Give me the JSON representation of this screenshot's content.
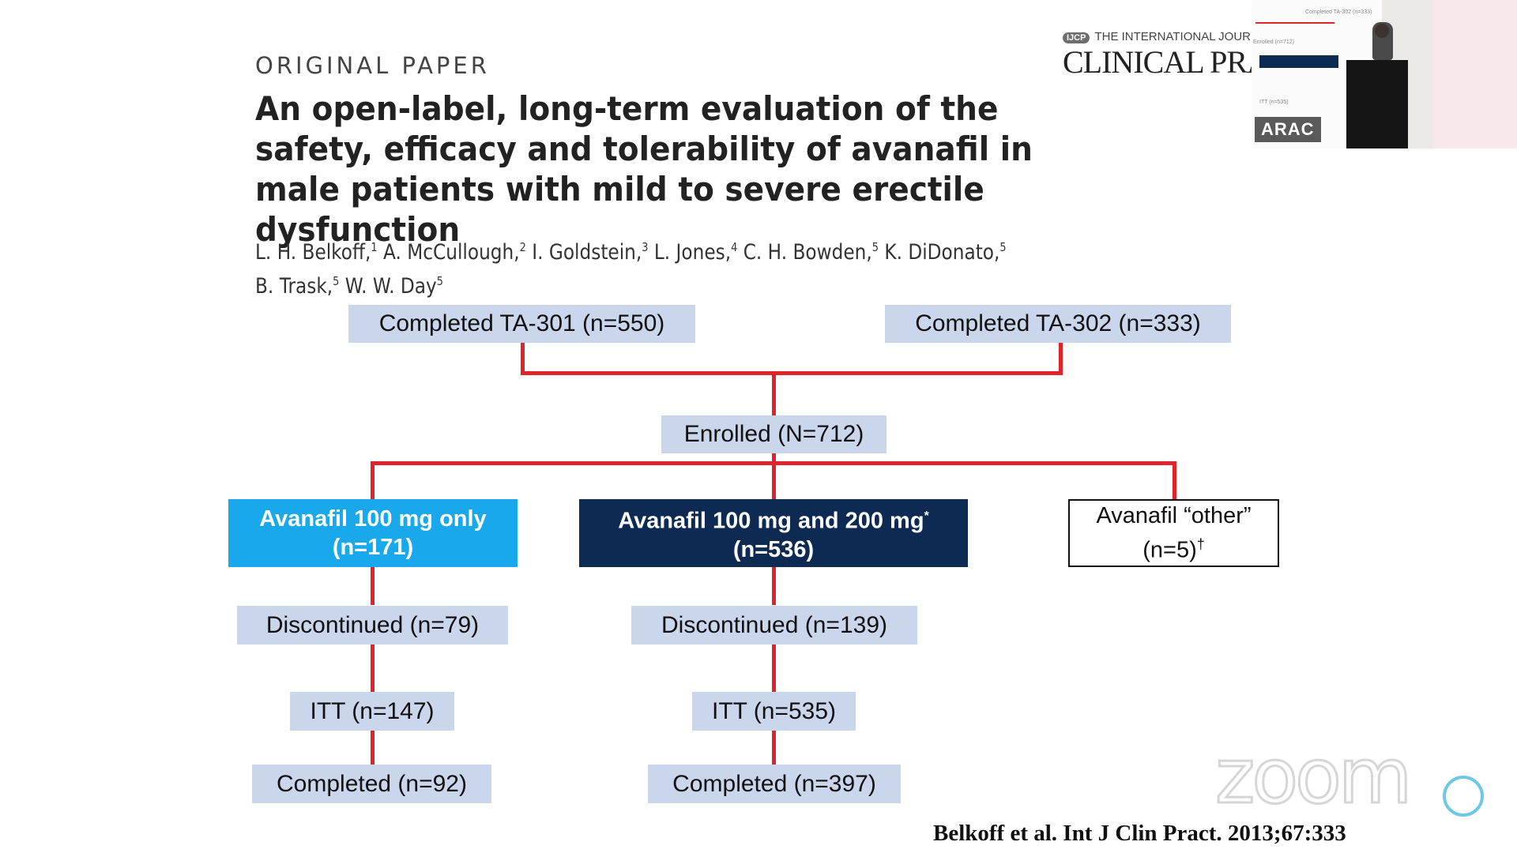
{
  "slide": {
    "header": "ORIGINAL PAPER",
    "title": "An open-label, long-term evaluation of the safety, efficacy and tolerability of avanafil in male patients with mild to severe erectile dysfunction",
    "authors": [
      {
        "name": "L. H. Belkoff,",
        "sup": "1"
      },
      {
        "name": "A. McCullough,",
        "sup": "2"
      },
      {
        "name": "I. Goldstein,",
        "sup": "3"
      },
      {
        "name": "L. Jones,",
        "sup": "4"
      },
      {
        "name": "C. H. Bowden,",
        "sup": "5"
      },
      {
        "name": "K. DiDonato,",
        "sup": "5"
      },
      {
        "name": "B. Trask,",
        "sup": "5"
      },
      {
        "name": "W. W. Day",
        "sup": "5"
      }
    ],
    "journal_badge": "IJCP",
    "journal_line1": "THE INTERNATIONAL JOURNAL",
    "journal_line2": "CLINICAL PRA",
    "citation": "Belkoff et al. Int J Clin Pract. 2013;67:333"
  },
  "flowchart": {
    "ta301": "Completed  TA-301 (n=550)",
    "ta302": "Completed  TA-302 (n=333)",
    "enrolled": "Enrolled  (N=712)",
    "arm1": {
      "line1": "Avanafil  100 mg only",
      "line2": "(n=171)"
    },
    "arm2": {
      "line1": "Avanafil  100 mg and 200 mg",
      "sup": "*",
      "line2": "(n=536)"
    },
    "arm3": {
      "line1": "Avanafil  “other”",
      "line2": "(n=5)",
      "sup": "†"
    },
    "arm1_discontinued": "Discontinued   (n=79)",
    "arm2_discontinued": "Discontinued   (n=139)",
    "arm1_itt": "ITT (n=147)",
    "arm2_itt": "ITT (n=535)",
    "arm1_completed": "Completed  (n=92)",
    "arm2_completed": "Completed  (n=397)"
  },
  "video": {
    "speaker_label": "ARAC",
    "mini_label1": "Completed TA-302 (n=333)",
    "mini_label2": "Enrolled (n=712)",
    "mini_label3": "ITT (n=535)"
  },
  "watermark": {
    "text": "zoom"
  },
  "colors": {
    "connector": "#e0242b",
    "light_box": "#c9d6ec",
    "cyan_box": "#1aa8ec",
    "navy_box": "#0c2a52"
  }
}
